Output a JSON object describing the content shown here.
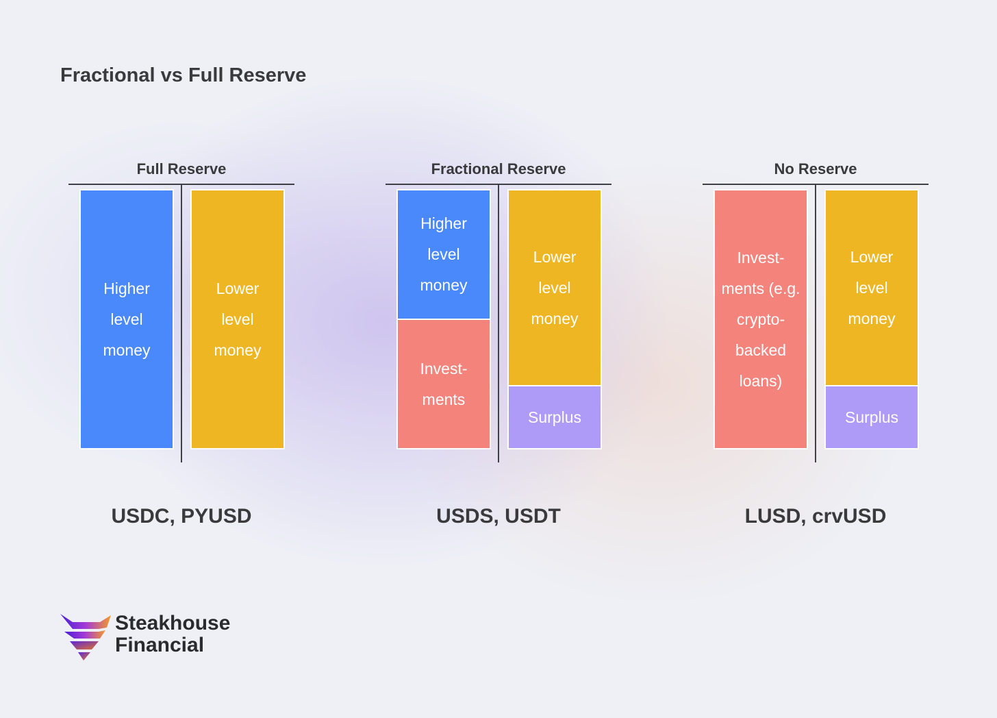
{
  "title": "Fractional vs Full Reserve",
  "panels": [
    {
      "id": "full-reserve",
      "title": "Full Reserve",
      "examples": "USDC, PYUSD",
      "assets": [
        {
          "label": "Higher\nlevel\nmoney",
          "color": "#4a89fb",
          "share": 1.0
        }
      ],
      "liabilities": [
        {
          "label": "Lower\nlevel\nmoney",
          "color": "#efb624",
          "share": 1.0
        }
      ]
    },
    {
      "id": "fractional-reserve",
      "title": "Fractional Reserve",
      "examples": "USDS, USDT",
      "assets": [
        {
          "label": "Higher\nlevel\nmoney",
          "color": "#4a89fb",
          "share": 0.5
        },
        {
          "label": "Invest-\nments",
          "color": "#f4837c",
          "share": 0.5
        }
      ],
      "liabilities": [
        {
          "label": "Lower\nlevel\nmoney",
          "color": "#efb624",
          "share": 0.76
        },
        {
          "label": "Surplus",
          "color": "#ae9bf8",
          "share": 0.24
        }
      ]
    },
    {
      "id": "no-reserve",
      "title": "No Reserve",
      "examples": "LUSD, crvUSD",
      "assets": [
        {
          "label": "Invest-\nments (e.g.\ncrypto-\nbacked\nloans)",
          "color": "#f4837c",
          "share": 1.0
        }
      ],
      "liabilities": [
        {
          "label": "Lower\nlevel\nmoney",
          "color": "#efb624",
          "share": 0.76
        },
        {
          "label": "Surplus",
          "color": "#ae9bf8",
          "share": 0.24
        }
      ]
    }
  ],
  "brand": {
    "line1": "Steakhouse",
    "line2": "Financial",
    "logo_icon": "steakhouse-bull-logo-icon"
  }
}
